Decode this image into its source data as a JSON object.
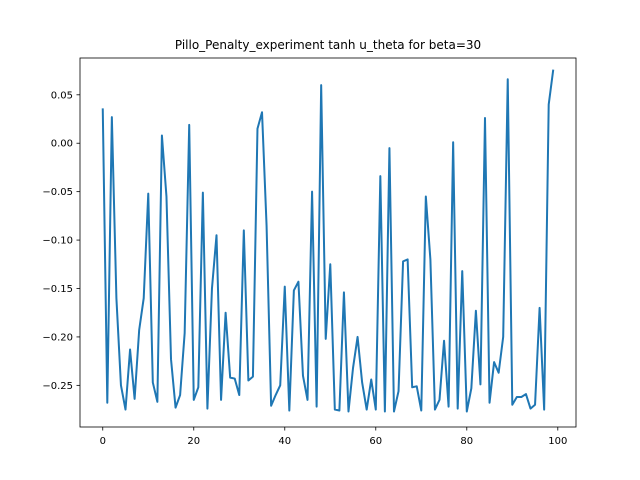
{
  "chart_data": {
    "type": "line",
    "title": "Pillo_Penalty_experiment tanh u_theta for beta=30",
    "xlabel": "",
    "ylabel": "",
    "xlim": [
      -5,
      104
    ],
    "ylim": [
      -0.293,
      0.088
    ],
    "xticks": [
      0,
      20,
      40,
      60,
      80,
      100
    ],
    "yticks": [
      -0.25,
      -0.2,
      -0.15,
      -0.1,
      -0.05,
      0.0,
      0.05
    ],
    "ytick_labels": [
      "−0.25",
      "−0.20",
      "−0.15",
      "−0.10",
      "−0.05",
      "0.00",
      "0.05"
    ],
    "xtick_labels": [
      "0",
      "20",
      "40",
      "60",
      "80",
      "100"
    ],
    "grid": false,
    "series": [
      {
        "color": "#1f77b4",
        "x": [
          0,
          1,
          2,
          3,
          4,
          5,
          6,
          7,
          8,
          9,
          10,
          11,
          12,
          13,
          14,
          15,
          16,
          17,
          18,
          19,
          20,
          21,
          22,
          23,
          24,
          25,
          26,
          27,
          28,
          29,
          30,
          31,
          32,
          33,
          34,
          35,
          36,
          37,
          38,
          39,
          40,
          41,
          42,
          43,
          44,
          45,
          46,
          47,
          48,
          49,
          50,
          51,
          52,
          53,
          54,
          55,
          56,
          57,
          58,
          59,
          60,
          61,
          62,
          63,
          64,
          65,
          66,
          67,
          68,
          69,
          70,
          71,
          72,
          73,
          74,
          75,
          76,
          77,
          78,
          79,
          80,
          81,
          82,
          83,
          84,
          85,
          86,
          87,
          88,
          89,
          90,
          91,
          92,
          93,
          94,
          95,
          96,
          97,
          98,
          99
        ],
        "values": [
          0.036,
          -0.268,
          0.027,
          -0.16,
          -0.25,
          -0.275,
          -0.213,
          -0.264,
          -0.193,
          -0.16,
          -0.052,
          -0.247,
          -0.267,
          0.008,
          -0.055,
          -0.223,
          -0.273,
          -0.26,
          -0.196,
          0.019,
          -0.265,
          -0.252,
          -0.051,
          -0.274,
          -0.15,
          -0.095,
          -0.265,
          -0.175,
          -0.242,
          -0.243,
          -0.26,
          -0.09,
          -0.245,
          -0.241,
          0.015,
          0.032,
          -0.085,
          -0.271,
          -0.26,
          -0.25,
          -0.148,
          -0.276,
          -0.152,
          -0.143,
          -0.24,
          -0.265,
          -0.05,
          -0.272,
          0.06,
          -0.202,
          -0.125,
          -0.275,
          -0.276,
          -0.154,
          -0.277,
          -0.232,
          -0.2,
          -0.247,
          -0.275,
          -0.244,
          -0.275,
          -0.034,
          -0.277,
          -0.005,
          -0.277,
          -0.256,
          -0.122,
          -0.12,
          -0.252,
          -0.251,
          -0.276,
          -0.055,
          -0.12,
          -0.275,
          -0.265,
          -0.204,
          -0.272,
          0.001,
          -0.274,
          -0.132,
          -0.277,
          -0.253,
          -0.173,
          -0.249,
          0.026,
          -0.268,
          -0.226,
          -0.237,
          -0.2,
          0.066,
          -0.27,
          -0.262,
          -0.262,
          -0.259,
          -0.274,
          -0.27,
          -0.17,
          -0.275,
          0.04,
          0.076
        ]
      }
    ]
  }
}
